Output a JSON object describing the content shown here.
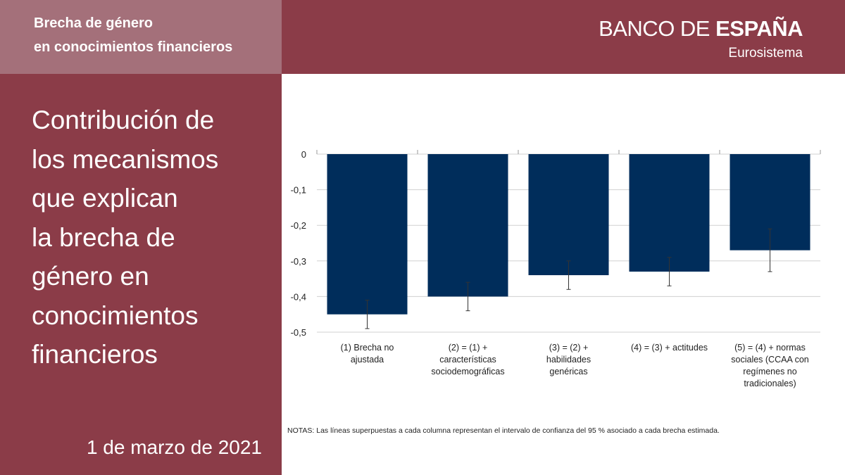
{
  "header": {
    "line1": "Brecha de género",
    "line2": "en conocimientos financieros"
  },
  "brand": {
    "name_thin": "BANCO DE ",
    "name_bold": "ESPAÑA",
    "subtitle": "Eurosistema"
  },
  "title_lines": [
    "Contribución de",
    "los mecanismos",
    "que explican",
    "la brecha de",
    "género en",
    "conocimientos",
    "financieros"
  ],
  "date": "1 de marzo de 2021",
  "notes": "NOTAS: Las líneas superpuestas a cada columna representan el intervalo de confianza del 95 % asociado a cada brecha estimada.",
  "colors": {
    "panel": "#8b3c48",
    "header_box": "#a4707a",
    "bar": "#002d5b",
    "grid": "#d0d0d0",
    "axis_text": "#222222"
  },
  "chart_data": {
    "type": "bar",
    "title": "",
    "xlabel": "",
    "ylabel": "",
    "ylim": [
      -0.5,
      0
    ],
    "ytick_values": [
      0,
      -0.1,
      -0.2,
      -0.3,
      -0.4,
      -0.5
    ],
    "ytick_labels": [
      "0",
      "-0,1",
      "-0,2",
      "-0,3",
      "-0,4",
      "-0,5"
    ],
    "grid": true,
    "categories": [
      [
        "(1) Brecha no",
        "ajustada"
      ],
      [
        "(2) = (1) +",
        "características",
        "sociodemográficas"
      ],
      [
        "(3) = (2) +",
        "habilidades",
        "genéricas"
      ],
      [
        "(4) = (3) + actitudes"
      ],
      [
        "(5) = (4) + normas",
        "sociales (CCAA con",
        "regímenes no",
        "tradicionales)"
      ]
    ],
    "values": [
      -0.45,
      -0.4,
      -0.34,
      -0.33,
      -0.27
    ],
    "ci_low": [
      -0.49,
      -0.44,
      -0.38,
      -0.37,
      -0.33
    ],
    "ci_high": [
      -0.41,
      -0.36,
      -0.3,
      -0.29,
      -0.21
    ]
  }
}
